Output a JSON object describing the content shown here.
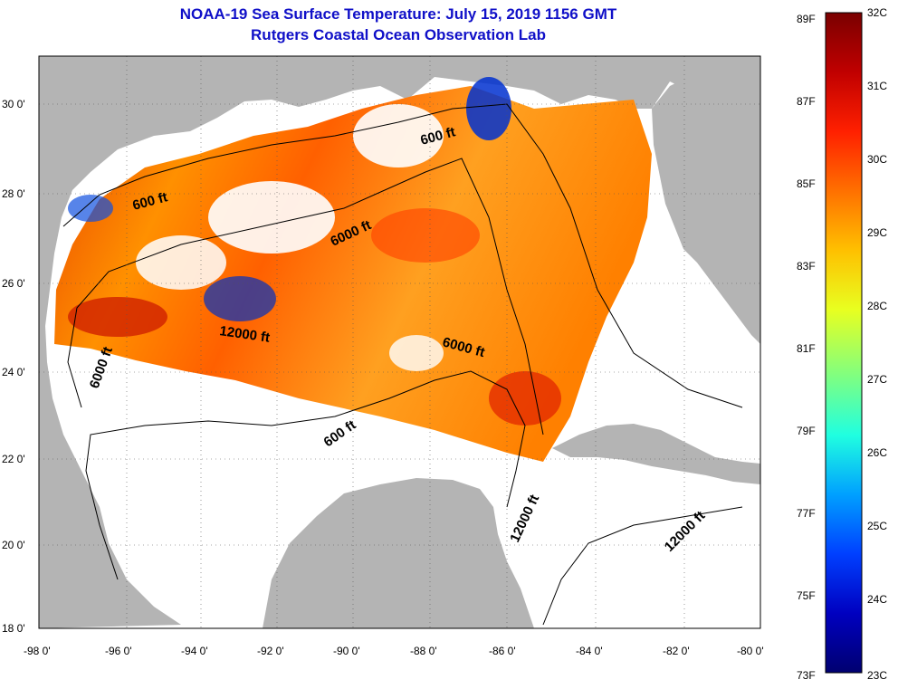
{
  "title": "NOAA-19 Sea Surface Temperature:  July 15, 2019 1156 GMT",
  "subtitle": "Rutgers Coastal Ocean Observation Lab",
  "lat_ticks": [
    "30 0'",
    "28 0'",
    "26 0'",
    "24 0'",
    "22 0'",
    "20 0'",
    "18 0'"
  ],
  "lon_ticks": [
    "-98 0'",
    "-96 0'",
    "-94 0'",
    "-92 0'",
    "-90 0'",
    "-88 0'",
    "-86 0'",
    "-84 0'",
    "-82 0'",
    "-80 0'"
  ],
  "contour_labels": [
    "600 ft",
    "600 ft",
    "6000 ft",
    "12000 ft",
    "6000 ft",
    "6000 ft",
    "600 ft",
    "12000 ft",
    "12000 ft"
  ],
  "colorbar": {
    "fahrenheit": [
      "89F",
      "87F",
      "85F",
      "83F",
      "81F",
      "79F",
      "77F",
      "75F",
      "73F"
    ],
    "celsius": [
      "32C",
      "31C",
      "30C",
      "29C",
      "28C",
      "27C",
      "26C",
      "25C",
      "24C",
      "23C"
    ],
    "stops": [
      "#7a0000",
      "#c00000",
      "#ff2000",
      "#ff7000",
      "#ffc000",
      "#e8ff20",
      "#80ff80",
      "#20ffe0",
      "#00a0ff",
      "#0040ff",
      "#0000c0",
      "#000070"
    ]
  },
  "colors": {
    "land": "#b4b4b4",
    "ocean": "#ffffff",
    "title": "#1010c8"
  }
}
